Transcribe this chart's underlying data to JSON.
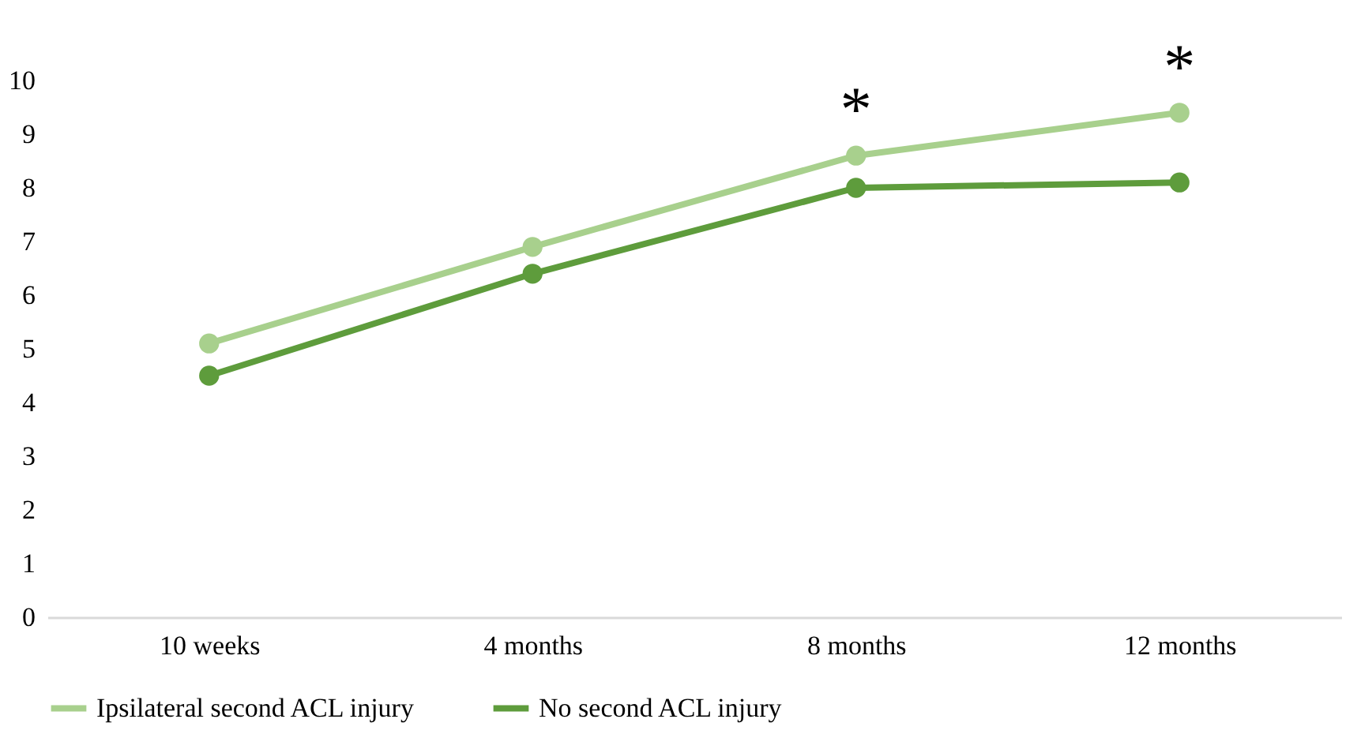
{
  "chart_data": {
    "type": "line",
    "categories": [
      "10 weeks",
      "4 months",
      "8 months",
      "12 months"
    ],
    "series": [
      {
        "name": "Ipsilateral second ACL injury",
        "color": "#a8d08d",
        "values": [
          5.1,
          6.9,
          8.6,
          9.4
        ]
      },
      {
        "name": "No second ACL injury",
        "color": "#5e9c3c",
        "values": [
          4.5,
          6.4,
          8.0,
          8.1
        ]
      }
    ],
    "ylim": [
      0,
      10
    ],
    "yticks": [
      0,
      1,
      2,
      3,
      4,
      5,
      6,
      7,
      8,
      9,
      10
    ],
    "annotations": [
      "*",
      "*"
    ],
    "grid": false,
    "legend": "bottom",
    "marker": "circle",
    "line_style": "solid"
  }
}
